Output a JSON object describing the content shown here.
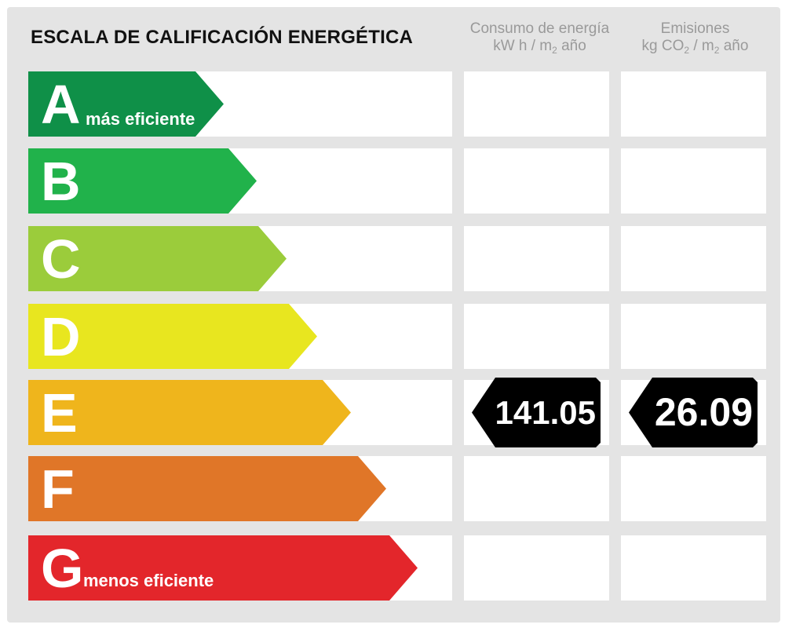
{
  "title": "ESCALA DE CALIFICACIÓN ENERGÉTICA",
  "columns": {
    "energy": {
      "line1": "Consumo de energía",
      "line2_main": "kW h / m",
      "line2_sub": "2",
      "line2_end": " año"
    },
    "emissions": {
      "line1": "Emisiones",
      "line2_main": "kg CO",
      "line2_sub": "2",
      "line2_mid": " / m",
      "line2_sub2": "2",
      "line2_end": " año"
    }
  },
  "ratings": [
    {
      "letter": "A",
      "subtitle": "más eficiente",
      "color": "#0f9048"
    },
    {
      "letter": "B",
      "subtitle": "",
      "color": "#21b24b"
    },
    {
      "letter": "C",
      "subtitle": "",
      "color": "#9bcc3b"
    },
    {
      "letter": "D",
      "subtitle": "",
      "color": "#e8e61f"
    },
    {
      "letter": "E",
      "subtitle": "",
      "color": "#efb51c"
    },
    {
      "letter": "F",
      "subtitle": "",
      "color": "#e07628"
    },
    {
      "letter": "G",
      "subtitle": "menos eficiente",
      "color": "#e3262b"
    }
  ],
  "current": {
    "rating": "E",
    "energy_value": "141.05",
    "emissions_value": "26.09",
    "badge_color": "#000000"
  }
}
